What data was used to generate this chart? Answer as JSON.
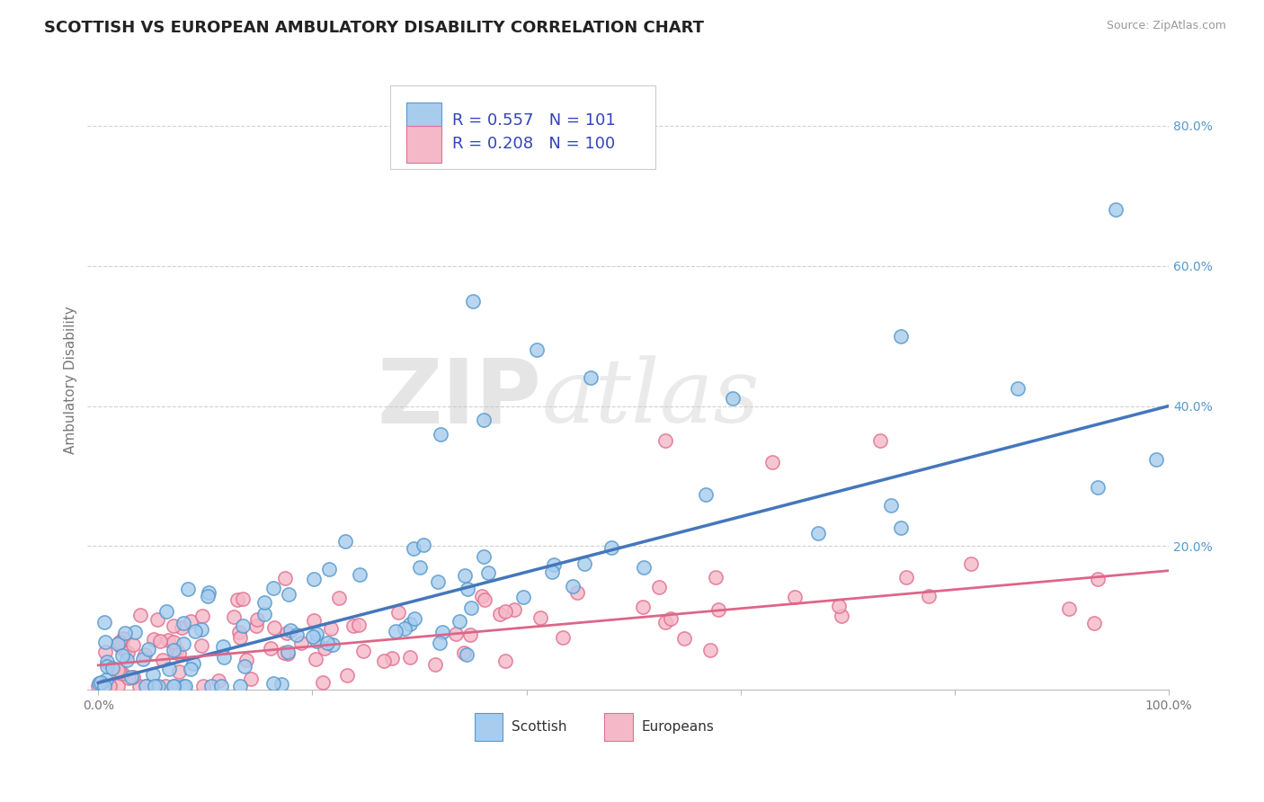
{
  "title": "SCOTTISH VS EUROPEAN AMBULATORY DISABILITY CORRELATION CHART",
  "source_text": "Source: ZipAtlas.com",
  "ylabel": "Ambulatory Disability",
  "scottish_R": 0.557,
  "scottish_N": 101,
  "european_R": 0.208,
  "european_N": 100,
  "scottish_face_color": "#A8CCEE",
  "scottish_edge_color": "#5599CC",
  "european_face_color": "#F5B8C8",
  "european_edge_color": "#E07090",
  "scottish_line_color": "#4477BB",
  "european_line_color": "#DD6688",
  "background_color": "#FFFFFF",
  "grid_color": "#CCCCCC",
  "legend_label_scottish": "Scottish",
  "legend_label_european": "Europeans",
  "watermark_zip": "ZIP",
  "watermark_atlas": "atlas",
  "title_fontsize": 13,
  "axis_label_fontsize": 11,
  "tick_fontsize": 10,
  "legend_fontsize": 13,
  "source_fontsize": 9,
  "scottish_line_intercept": 0.005,
  "scottish_line_slope": 0.395,
  "european_line_intercept": 0.03,
  "european_line_slope": 0.135,
  "ylim_max": 0.88,
  "xlim_max": 1.0
}
